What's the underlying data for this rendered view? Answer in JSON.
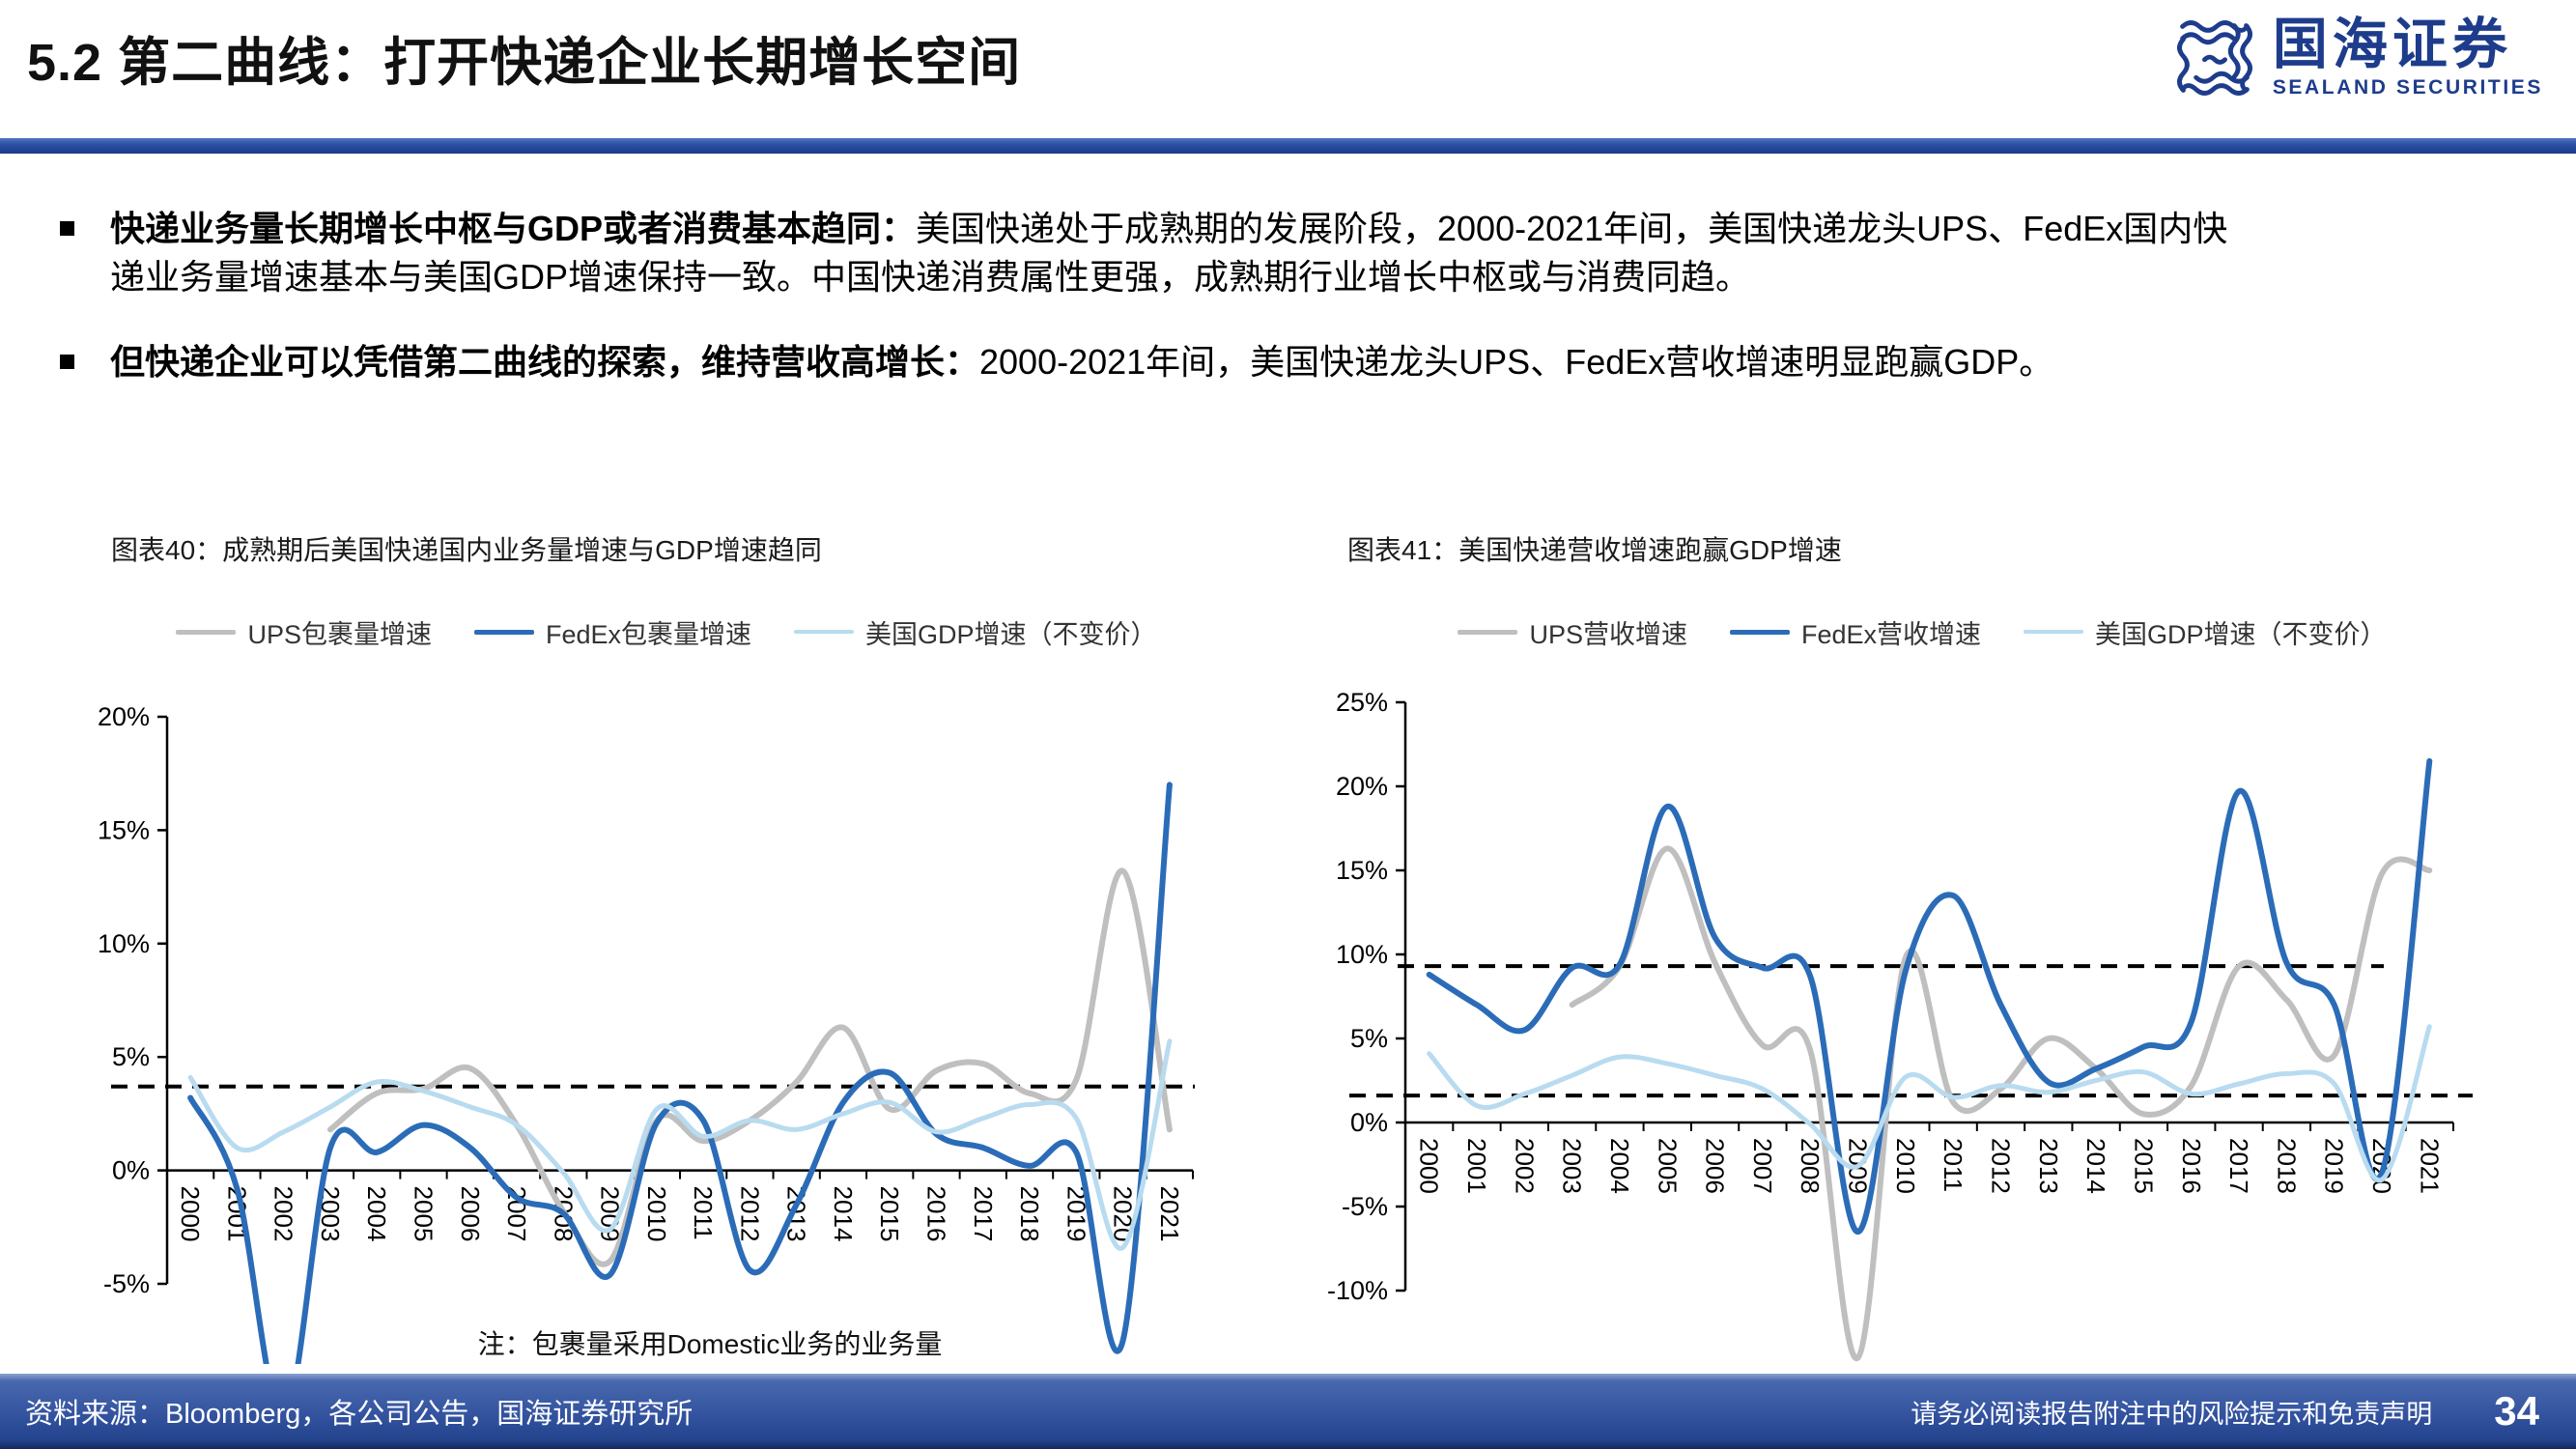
{
  "header": {
    "section_title": "5.2 第二曲线：打开快递企业长期增长空间",
    "logo_cn": "国海证券",
    "logo_en": "SEALAND SECURITIES"
  },
  "bullets": [
    {
      "bold": "快递业务量长期增长中枢与GDP或者消费基本趋同：",
      "text": "美国快递处于成熟期的发展阶段，2000-2021年间，美国快递龙头UPS、FedEx国内快\n递业务量增速基本与美国GDP增速保持一致。中国快递消费属性更强，成熟期行业增长中枢或与消费同趋。"
    },
    {
      "bold": "但快递企业可以凭借第二曲线的探索，维持营收高增长：",
      "text": "2000-2021年间，美国快递龙头UPS、FedEx营收增速明显跑赢GDP。"
    }
  ],
  "colors": {
    "ups_gray": "#BFBFBF",
    "fedex_blue": "#2B6CB8",
    "gdp_lightblue": "#B8DBF0",
    "brand_blue": "#1E3C8C",
    "footer_blue": "#33539F",
    "dashed_black": "#000000"
  },
  "chart_data": [
    {
      "type": "line",
      "figure_label": "图表40",
      "title": "图表40：成熟期后美国快递国内业务量增速与GDP增速趋同",
      "note": "注：包裹量采用Domestic业务的业务量",
      "x": [
        "2000",
        "2001",
        "2002",
        "2003",
        "2004",
        "2005",
        "2006",
        "2007",
        "2008",
        "2009",
        "2010",
        "2011",
        "2012",
        "2013",
        "2014",
        "2015",
        "2016",
        "2017",
        "2018",
        "2019",
        "2020",
        "2021"
      ],
      "ylim": [
        -5,
        20
      ],
      "yticks": [
        20,
        15,
        10,
        5,
        0,
        -5
      ],
      "ytick_labels": [
        "20%",
        "15%",
        "10%",
        "5%",
        "0%",
        "-5%"
      ],
      "baseline": 0,
      "grid": false,
      "legend_position": "top",
      "dashed_lines": [
        3.7
      ],
      "series": [
        {
          "name": "UPS包裹量增速",
          "color": "#BFBFBF",
          "width": 6,
          "values": [
            null,
            null,
            null,
            1.8,
            3.4,
            3.6,
            4.5,
            2.0,
            -1.8,
            -4.0,
            2.2,
            1.3,
            2.2,
            3.9,
            6.3,
            2.7,
            4.4,
            4.7,
            3.4,
            4.0,
            13.2,
            1.8
          ]
        },
        {
          "name": "FedEx包裹量增速",
          "color": "#2B6CB8",
          "width": 6,
          "values": [
            3.2,
            -0.8,
            -11.0,
            1.0,
            0.8,
            2.0,
            1.0,
            -1.2,
            -1.9,
            -4.6,
            2.1,
            2.2,
            -4.4,
            -1.5,
            3.0,
            4.3,
            1.6,
            1.0,
            0.2,
            0.8,
            -7.5,
            17.0
          ]
        },
        {
          "name": "美国GDP增速（不变价）",
          "color": "#B8DBF0",
          "width": 5,
          "values": [
            4.1,
            1.0,
            1.7,
            2.8,
            3.9,
            3.5,
            2.8,
            2.0,
            -0.1,
            -2.6,
            2.7,
            1.5,
            2.2,
            1.8,
            2.5,
            3.0,
            1.7,
            2.3,
            2.9,
            2.3,
            -3.4,
            5.7
          ]
        }
      ]
    },
    {
      "type": "line",
      "figure_label": "图表41",
      "title": "图表41：美国快递营收增速跑赢GDP增速",
      "note": "",
      "x": [
        "2000",
        "2001",
        "2002",
        "2003",
        "2004",
        "2005",
        "2006",
        "2007",
        "2008",
        "2009",
        "2010",
        "2011",
        "2012",
        "2013",
        "2014",
        "2015",
        "2016",
        "2017",
        "2018",
        "2019",
        "2020",
        "2021"
      ],
      "ylim": [
        -10,
        25
      ],
      "yticks": [
        25,
        20,
        15,
        10,
        5,
        0,
        -5,
        -10
      ],
      "ytick_labels": [
        "25%",
        "20%",
        "15%",
        "10%",
        "5%",
        "0%",
        "-5%",
        "-10%"
      ],
      "baseline": 0,
      "grid": false,
      "legend_position": "top",
      "dashed_lines": [
        9.3,
        1.6
      ],
      "series": [
        {
          "name": "UPS营收增速",
          "color": "#BFBFBF",
          "width": 6,
          "values": [
            null,
            null,
            null,
            7.0,
            9.3,
            16.3,
            9.5,
            4.6,
            4.3,
            -14.0,
            9.8,
            1.2,
            2.0,
            5.0,
            3.2,
            0.5,
            2.2,
            9.3,
            7.3,
            4.0,
            14.8,
            15.0
          ]
        },
        {
          "name": "FedEx营收增速",
          "color": "#2B6CB8",
          "width": 6,
          "values": [
            8.8,
            7.0,
            5.5,
            9.2,
            9.4,
            18.8,
            11.0,
            9.2,
            8.7,
            -6.5,
            9.0,
            13.5,
            7.0,
            2.4,
            3.2,
            4.5,
            6.0,
            19.7,
            9.5,
            7.0,
            -3.0,
            21.5
          ]
        },
        {
          "name": "美国GDP增速（不变价）",
          "color": "#B8DBF0",
          "width": 5,
          "values": [
            4.1,
            1.0,
            1.7,
            2.8,
            3.9,
            3.5,
            2.8,
            2.0,
            -0.1,
            -2.6,
            2.7,
            1.5,
            2.2,
            1.8,
            2.5,
            3.0,
            1.7,
            2.3,
            2.9,
            2.3,
            -3.4,
            5.7
          ]
        }
      ]
    }
  ],
  "footer": {
    "source": "资料来源：Bloomberg，各公司公告，国海证券研究所",
    "disclaimer": "请务必阅读报告附注中的风险提示和免责声明",
    "page": "34"
  }
}
